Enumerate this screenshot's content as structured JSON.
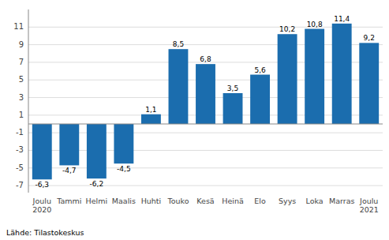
{
  "chart_data": {
    "type": "bar",
    "categories": [
      "Joulu\n2020",
      "Tammi",
      "Helmi",
      "Maalis",
      "Huhti",
      "Touko",
      "Kesä",
      "Heinä",
      "Elo",
      "Syys",
      "Loka",
      "Marras",
      "Joulu\n2021"
    ],
    "values": [
      -6.3,
      -4.7,
      -6.2,
      -4.5,
      1.1,
      8.5,
      6.8,
      3.5,
      5.6,
      10.2,
      10.8,
      11.4,
      9.2
    ],
    "value_labels": [
      "-6,3",
      "-4,7",
      "-6,2",
      "-4,5",
      "1,1",
      "8,5",
      "6,8",
      "3,5",
      "5,6",
      "10,2",
      "10,8",
      "11,4",
      "9,2"
    ],
    "color": "#1B6DAE",
    "ylim": [
      -7.8,
      13.0
    ],
    "yticks": [
      -7,
      -5,
      -3,
      -1,
      1,
      3,
      5,
      7,
      9,
      11
    ],
    "grid": true,
    "data_labels": true,
    "annotations": [
      "Lähde: Tilastokeskus"
    ]
  }
}
